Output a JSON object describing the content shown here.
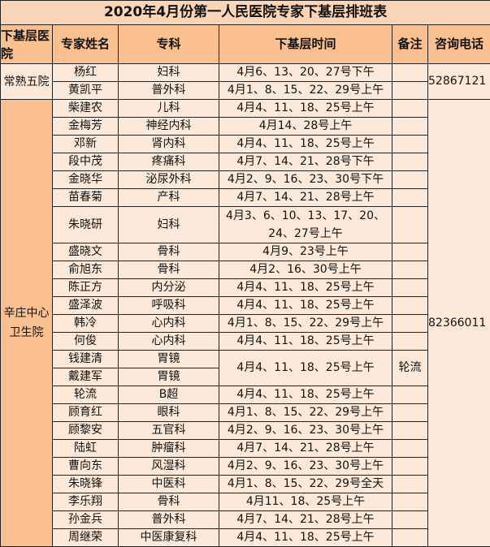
{
  "title": "2020年4月份第一人民医院专家下基层排班表",
  "headers": [
    "下基层医院",
    "专家姓名",
    "专科",
    "下基层时间",
    "备注",
    "咨询电话"
  ],
  "groups": [
    {
      "hospital": "常熟五院",
      "phone": "52867121",
      "rows": [
        {
          "name": "杨红",
          "dept": "妇科",
          "time": "4月6、13、20、27号下午",
          "note": ""
        },
        {
          "name": "黄凯平",
          "dept": "普外科",
          "time": "4月1、8、15、22、29号上午",
          "note": ""
        }
      ]
    },
    {
      "hospital": "辛庄中心卫生院",
      "phone": "82366011",
      "rows": [
        {
          "name": "柴建农",
          "dept": "儿科",
          "time": "4月4、11、18、25号上午",
          "note": ""
        },
        {
          "name": "金梅芳",
          "dept": "神经内科",
          "time": "4月14、28号上午",
          "note": ""
        },
        {
          "name": "邓新",
          "dept": "肾内科",
          "time": "4月4、11、18、25号上午",
          "note": ""
        },
        {
          "name": "段中茂",
          "dept": "疼痛科",
          "time": "4月7、14、21、28号下午",
          "note": ""
        },
        {
          "name": "金晓华",
          "dept": "泌尿外科",
          "time": "4月2、9、16、23、30号下午",
          "note": ""
        },
        {
          "name": "苗春菊",
          "dept": "产科",
          "time": "4月7、14、21、28号上午",
          "note": ""
        },
        {
          "name": "朱晓研",
          "dept": "妇科",
          "time": "4月3、6、10、13、17、20、24、27号上午",
          "note": ""
        },
        {
          "name": "盛晓文",
          "dept": "骨科",
          "time": "4月9、23号上午",
          "note": ""
        },
        {
          "name": "俞旭东",
          "dept": "骨科",
          "time": "4月2、16、30号上午",
          "note": ""
        },
        {
          "name": "陈正方",
          "dept": "内分泌",
          "time": "4月4、11、18、25号上午",
          "note": ""
        },
        {
          "name": "盛泽波",
          "dept": "呼吸科",
          "time": "4月4、11、18、25号上午",
          "note": ""
        },
        {
          "name": "韩冷",
          "dept": "心内科",
          "time": "4月1、8、15、22、29号上午",
          "note": ""
        },
        {
          "name": "何俊",
          "dept": "心内科",
          "time": "4月4、11、18、25号上午",
          "note": ""
        },
        {
          "name": "钱建清",
          "dept": "胃镜",
          "time": "4月4、11、18、25号上午",
          "note": "轮流",
          "span": 2
        },
        {
          "name": "戴建军",
          "dept": "胃镜",
          "merged": true
        },
        {
          "name": "轮流",
          "dept": "B超",
          "time": "4月4、11、18、25号上午",
          "note": ""
        },
        {
          "name": "顾育红",
          "dept": "眼科",
          "time": "4月1、8、15、22、29号上午",
          "note": ""
        },
        {
          "name": "顾黎安",
          "dept": "五官科",
          "time": "4月2、9、16、23、30号上午",
          "note": ""
        },
        {
          "name": "陆虹",
          "dept": "肿瘤科",
          "time": "4月7、14、21、28号上午",
          "note": ""
        },
        {
          "name": "曹向东",
          "dept": "风湿科",
          "time": "4月2、9、16、23、30号上午",
          "note": ""
        },
        {
          "name": "朱晓锋",
          "dept": "中医科",
          "time": "4月1、8、15、22、29号全天",
          "note": ""
        },
        {
          "name": "李乐翔",
          "dept": "骨科",
          "time": "4月11、18、25号上午",
          "note": ""
        },
        {
          "name": "孙金兵",
          "dept": "普外科",
          "time": "4月7、14、21、28号上午",
          "note": ""
        },
        {
          "name": "周继荣",
          "dept": "中医康复科",
          "time": "4月4、11、18、25号上午",
          "note": ""
        }
      ]
    }
  ],
  "colors": {
    "header": "#fac090",
    "title": "#fbd5b5",
    "cell": "#fde9d9"
  }
}
